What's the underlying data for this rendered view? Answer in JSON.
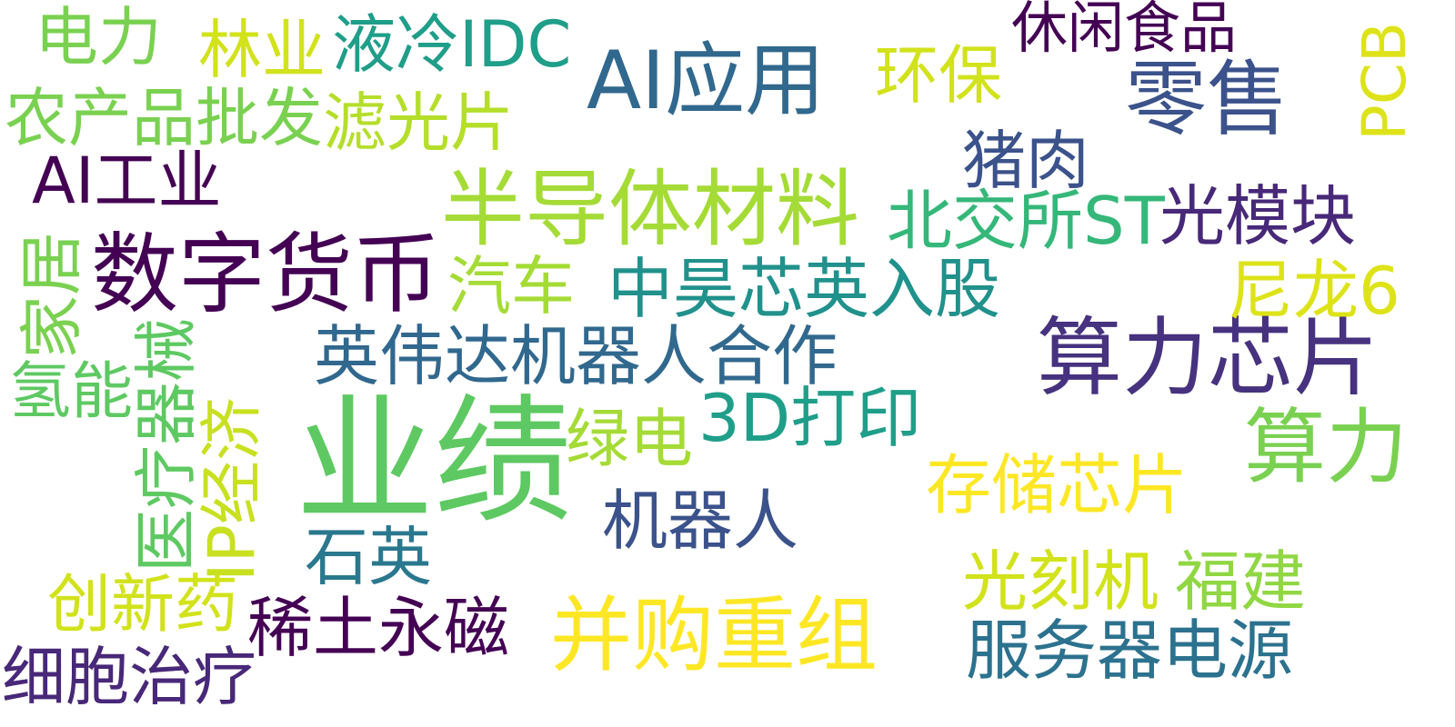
{
  "word_cloud": {
    "words": [
      {
        "text": "业绩",
        "color": "#5ec962"
      },
      {
        "text": "半导体材料",
        "color": "#a5db36"
      },
      {
        "text": "数字货币",
        "color": "#440154"
      },
      {
        "text": "算力芯片",
        "color": "#46327e"
      },
      {
        "text": "AI应用",
        "color": "#31688e"
      },
      {
        "text": "零售",
        "color": "#3b528b"
      },
      {
        "text": "并购重组",
        "color": "#fde725"
      },
      {
        "text": "算力",
        "color": "#7ad151"
      },
      {
        "text": "英伟达机器人合作",
        "color": "#31688e"
      },
      {
        "text": "中昊芯英入股",
        "color": "#21918c"
      },
      {
        "text": "服务器电源",
        "color": "#2c728e"
      },
      {
        "text": "稀土永磁",
        "color": "#440154"
      },
      {
        "text": "北交所ST",
        "color": "#35b779"
      },
      {
        "text": "光模块",
        "color": "#482878"
      },
      {
        "text": "3D打印",
        "color": "#1f9e89"
      },
      {
        "text": "存储芯片",
        "color": "#fde725"
      },
      {
        "text": "机器人",
        "color": "#3b528b"
      },
      {
        "text": "光刻机",
        "color": "#d2e21b"
      },
      {
        "text": "福建",
        "color": "#90d743"
      },
      {
        "text": "细胞治疗",
        "color": "#482878"
      },
      {
        "text": "创新药",
        "color": "#d2e21b"
      },
      {
        "text": "农产品批发",
        "color": "#7ad151"
      },
      {
        "text": "滤光片",
        "color": "#b5de2b"
      },
      {
        "text": "液冷IDC",
        "color": "#1f9e89"
      },
      {
        "text": "林业",
        "color": "#d2e21b"
      },
      {
        "text": "电力",
        "color": "#7ad151"
      },
      {
        "text": "AI工业",
        "color": "#440154"
      },
      {
        "text": "环保",
        "color": "#d2e21b"
      },
      {
        "text": "休闲食品",
        "color": "#440154"
      },
      {
        "text": "猪肉",
        "color": "#3b528b"
      },
      {
        "text": "尼龙6",
        "color": "#dde318"
      },
      {
        "text": "石英",
        "color": "#2a788e"
      },
      {
        "text": "汽车",
        "color": "#a5db36"
      },
      {
        "text": "绿电",
        "color": "#a5db36"
      },
      {
        "text": "PCB",
        "color": "#dde318"
      },
      {
        "text": "家居",
        "color": "#7ad151"
      },
      {
        "text": "医疗器械",
        "color": "#5ec962"
      },
      {
        "text": "IP经济",
        "color": "#c8e020"
      },
      {
        "text": "氢能",
        "color": "#5ec962"
      }
    ]
  }
}
